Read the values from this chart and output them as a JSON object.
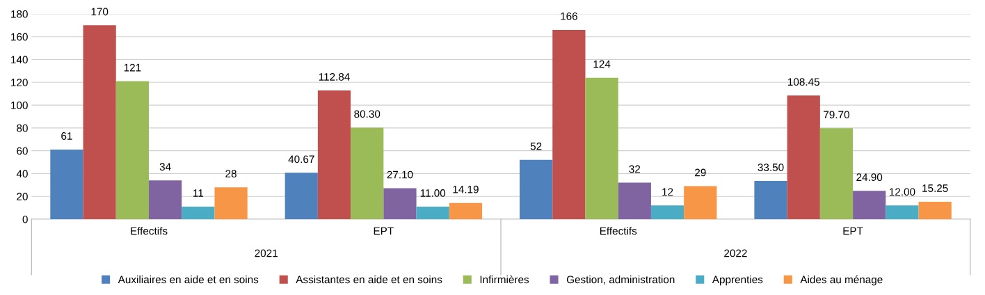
{
  "chart_data": {
    "type": "bar",
    "categories": [
      "Effectifs",
      "EPT",
      "Effectifs",
      "EPT"
    ],
    "annotations": [
      "2021",
      "2022"
    ],
    "series": [
      {
        "name": "Auxiliaires en aide et en soins",
        "color": "#4f81bd",
        "values": [
          61,
          40.67,
          52,
          33.5
        ],
        "value_labels": [
          "61",
          "40.67",
          "52",
          "33.50"
        ]
      },
      {
        "name": "Assistantes en aide et en soins",
        "color": "#c0504d",
        "values": [
          170,
          112.84,
          166,
          108.45
        ],
        "value_labels": [
          "170",
          "112.84",
          "166",
          "108.45"
        ]
      },
      {
        "name": "Infirmières",
        "color": "#9bbb59",
        "values": [
          121,
          80.3,
          124,
          79.7
        ],
        "value_labels": [
          "121",
          "80.30",
          "124",
          "79.70"
        ]
      },
      {
        "name": "Gestion, administration",
        "color": "#8064a2",
        "values": [
          34,
          27.1,
          32,
          24.9
        ],
        "value_labels": [
          "34",
          "27.10",
          "32",
          "24.90"
        ]
      },
      {
        "name": "Apprenties",
        "color": "#4bacc6",
        "values": [
          11,
          11.0,
          12,
          12.0
        ],
        "value_labels": [
          "11",
          "11.00",
          "12",
          "12.00"
        ]
      },
      {
        "name": "Aides au ménage",
        "color": "#f79646",
        "values": [
          28,
          14.19,
          29,
          15.25
        ],
        "value_labels": [
          "28",
          "14.19",
          "29",
          "15.25"
        ]
      }
    ],
    "ylim": [
      0,
      180
    ],
    "yticks": [
      0,
      20,
      40,
      60,
      80,
      100,
      120,
      140,
      160,
      180
    ],
    "grid": "y",
    "legend": "bottom"
  }
}
